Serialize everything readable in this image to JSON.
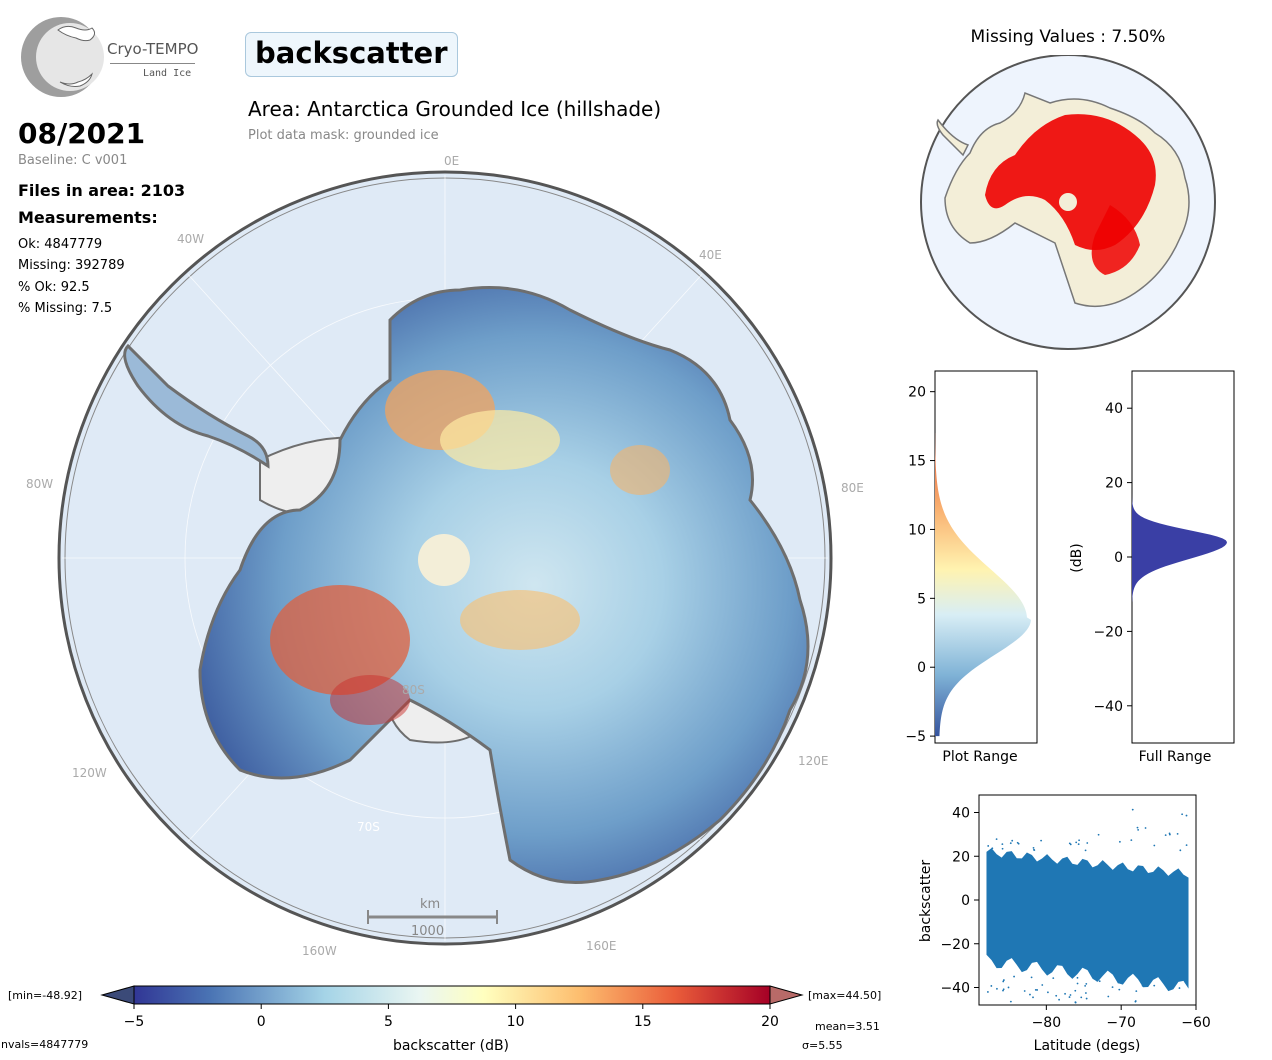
{
  "logo": {
    "name": "Cryo-TEMPO",
    "sub": "Land Ice"
  },
  "parameter": "backscatter",
  "area_title": "Area: Antarctica Grounded Ice (hillshade)",
  "mask_note": "Plot data mask: grounded ice",
  "date": "08/2021",
  "baseline": "Baseline: C v001",
  "files": "Files in area: 2103",
  "measurements_title": "Measurements:",
  "stats": [
    "Ok: 4847779",
    "Missing: 392789",
    "% Ok: 92.5",
    "% Missing: 7.5"
  ],
  "map": {
    "longitude_labels": [
      "0E",
      "40E",
      "80E",
      "120E",
      "160E",
      "160W",
      "120W",
      "80W",
      "40W"
    ],
    "latitude_labels": [
      "80S",
      "70S"
    ],
    "scale_bar": {
      "unit": "km",
      "value": "1000"
    },
    "colors": {
      "ocean": "#dfeaf6",
      "ice_shelf": "#eeeeee",
      "outline": "#6e6e6e",
      "pole_hole": "#f3eed8"
    }
  },
  "missing_map": {
    "title": "Missing Values : 7.50%",
    "colors": {
      "missing": "#ee0000",
      "land": "#f3eed8",
      "ocean": "#eef4fd"
    }
  },
  "hist_plot_range": {
    "xlabel": "Plot Range",
    "y_ticks": [
      "20",
      "15",
      "10",
      "5",
      "0",
      "−5"
    ]
  },
  "hist_full_range": {
    "xlabel": "Full Range",
    "ylabel": "(dB)",
    "y_ticks": [
      "40",
      "20",
      "0",
      "−20",
      "−40"
    ],
    "color": "#3a3fa5"
  },
  "scatter": {
    "xlabel": "Latitude (degs)",
    "ylabel": "backscatter",
    "x_ticks": [
      "−80",
      "−70",
      "−60"
    ],
    "y_ticks": [
      "40",
      "20",
      "0",
      "−20",
      "−40"
    ],
    "color": "#1f77b4"
  },
  "colorbar": {
    "label": "backscatter (dB)",
    "ticks": [
      "−5",
      "0",
      "5",
      "10",
      "15",
      "20"
    ],
    "min_label": "[min=-48.92]",
    "max_label": "[max=44.50]",
    "nvals": "nvals=4847779",
    "mean": "mean=3.51",
    "sigma": "σ=5.55"
  },
  "chart_data": [
    {
      "type": "histogram",
      "title": "",
      "xlabel": "Plot Range",
      "ylabel": "",
      "ylim": [
        -5.5,
        21.5
      ],
      "y_range": [
        -5,
        17
      ],
      "peak_y": 3.5
    },
    {
      "type": "histogram",
      "title": "",
      "xlabel": "Full Range",
      "ylabel": "(dB)",
      "ylim": [
        -50,
        50
      ],
      "y_range": [
        -12,
        18
      ],
      "peak_y": 4
    },
    {
      "type": "scatter",
      "title": "",
      "xlabel": "Latitude (degs)",
      "ylabel": "backscatter",
      "xlim": [
        -89,
        -60
      ],
      "ylim": [
        -48,
        48
      ],
      "x_range": [
        -88,
        -61
      ],
      "y_range": [
        -48.92,
        44.5
      ]
    }
  ]
}
